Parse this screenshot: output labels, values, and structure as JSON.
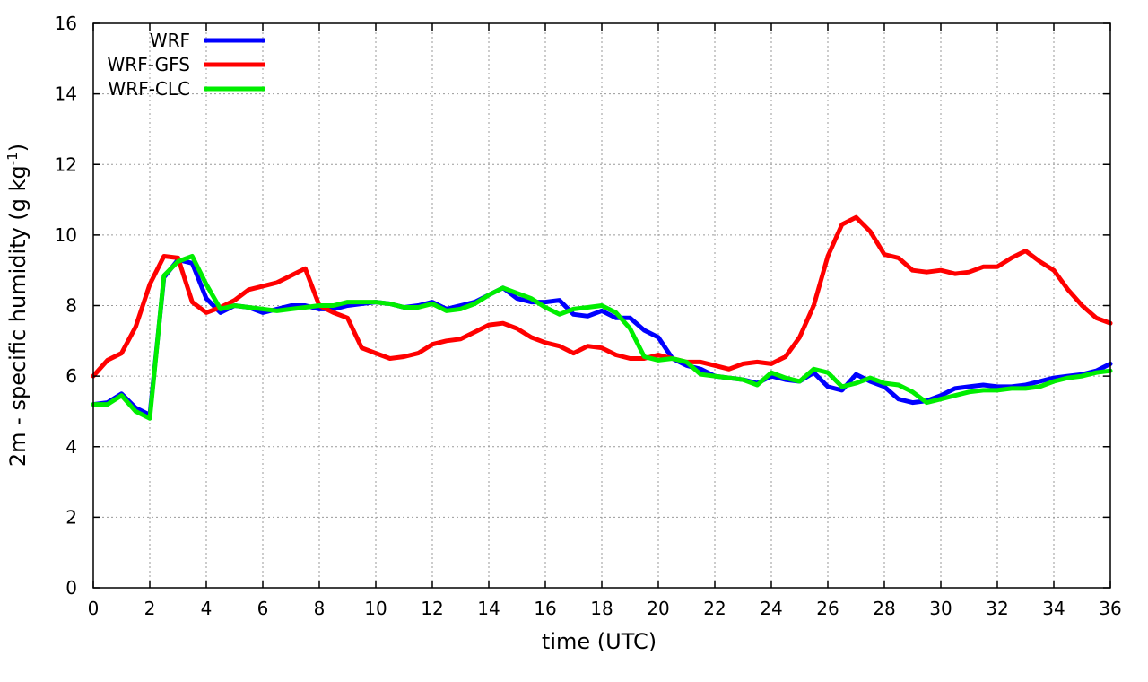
{
  "chart_data": {
    "type": "line",
    "xlabel": "time (UTC)",
    "ylabel_main": "2m - specific humidity (g kg",
    "ylabel_sup": "-1",
    "ylabel_close": ")",
    "xlim": [
      0,
      36
    ],
    "ylim": [
      0,
      16
    ],
    "xticks": [
      0,
      2,
      4,
      6,
      8,
      10,
      12,
      14,
      16,
      18,
      20,
      22,
      24,
      26,
      28,
      30,
      32,
      34,
      36
    ],
    "yticks": [
      0,
      2,
      4,
      6,
      8,
      10,
      12,
      14,
      16
    ],
    "grid": true,
    "legend_position": "top-left",
    "x": [
      0,
      0.5,
      1,
      1.5,
      2,
      2.5,
      3,
      3.5,
      4,
      4.5,
      5,
      5.5,
      6,
      6.5,
      7,
      7.5,
      8,
      8.5,
      9,
      9.5,
      10,
      10.5,
      11,
      11.5,
      12,
      12.5,
      13,
      13.5,
      14,
      14.5,
      15,
      15.5,
      16,
      16.5,
      17,
      17.5,
      18,
      18.5,
      19,
      19.5,
      20,
      20.5,
      21,
      21.5,
      22,
      22.5,
      23,
      23.5,
      24,
      24.5,
      25,
      25.5,
      26,
      26.5,
      27,
      27.5,
      28,
      28.5,
      29,
      29.5,
      30,
      30.5,
      31,
      31.5,
      32,
      32.5,
      33,
      33.5,
      34,
      34.5,
      35,
      35.5,
      36
    ],
    "series": [
      {
        "name": "WRF",
        "color": "#0000ff",
        "values": [
          5.2,
          5.25,
          5.5,
          5.1,
          4.9,
          8.8,
          9.3,
          9.2,
          8.2,
          7.8,
          8.0,
          7.95,
          7.8,
          7.9,
          8.0,
          8.0,
          7.9,
          7.9,
          8.0,
          8.05,
          8.1,
          8.05,
          7.95,
          8.0,
          8.1,
          7.9,
          8.0,
          8.1,
          8.3,
          8.5,
          8.2,
          8.1,
          8.1,
          8.15,
          7.75,
          7.7,
          7.85,
          7.65,
          7.65,
          7.3,
          7.1,
          6.5,
          6.3,
          6.2,
          6.0,
          5.95,
          5.9,
          5.8,
          6.0,
          5.9,
          5.85,
          6.1,
          5.7,
          5.6,
          6.05,
          5.85,
          5.7,
          5.35,
          5.25,
          5.3,
          5.45,
          5.65,
          5.7,
          5.75,
          5.7,
          5.7,
          5.75,
          5.85,
          5.95,
          6.0,
          6.05,
          6.15,
          6.35
        ]
      },
      {
        "name": "WRF-GFS",
        "color": "#ff0000",
        "values": [
          6.0,
          6.45,
          6.65,
          7.4,
          8.6,
          9.4,
          9.35,
          8.1,
          7.8,
          7.95,
          8.15,
          8.45,
          8.55,
          8.65,
          8.85,
          9.05,
          8.0,
          7.8,
          7.65,
          6.8,
          6.65,
          6.5,
          6.55,
          6.65,
          6.9,
          7.0,
          7.05,
          7.25,
          7.45,
          7.5,
          7.35,
          7.1,
          6.95,
          6.85,
          6.65,
          6.85,
          6.8,
          6.6,
          6.5,
          6.5,
          6.6,
          6.5,
          6.4,
          6.4,
          6.3,
          6.2,
          6.35,
          6.4,
          6.35,
          6.55,
          7.1,
          8.0,
          9.4,
          10.3,
          10.5,
          10.1,
          9.45,
          9.35,
          9.0,
          8.95,
          9.0,
          8.9,
          8.95,
          9.1,
          9.1,
          9.35,
          9.55,
          9.25,
          9.0,
          8.45,
          8.0,
          7.65,
          7.5
        ]
      },
      {
        "name": "WRF-CLC",
        "color": "#00ee00",
        "values": [
          5.2,
          5.2,
          5.45,
          5.0,
          4.8,
          8.85,
          9.25,
          9.4,
          8.6,
          7.9,
          8.0,
          7.95,
          7.9,
          7.85,
          7.9,
          7.95,
          8.0,
          8.0,
          8.1,
          8.1,
          8.1,
          8.05,
          7.95,
          7.95,
          8.05,
          7.85,
          7.9,
          8.05,
          8.3,
          8.5,
          8.35,
          8.2,
          7.95,
          7.75,
          7.9,
          7.95,
          8.0,
          7.8,
          7.35,
          6.55,
          6.45,
          6.5,
          6.4,
          6.05,
          6.0,
          5.95,
          5.9,
          5.75,
          6.1,
          5.95,
          5.85,
          6.2,
          6.1,
          5.7,
          5.8,
          5.95,
          5.8,
          5.75,
          5.55,
          5.25,
          5.35,
          5.45,
          5.55,
          5.6,
          5.6,
          5.65,
          5.65,
          5.7,
          5.85,
          5.95,
          6.0,
          6.1,
          6.15
        ]
      }
    ]
  }
}
